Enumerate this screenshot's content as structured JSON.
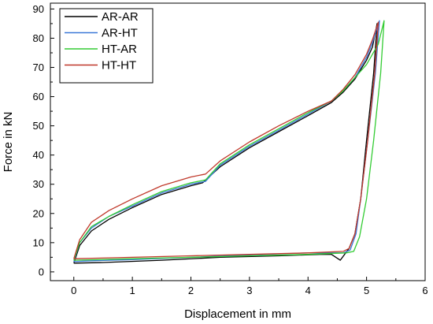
{
  "chart_data": {
    "type": "line",
    "xlabel": "Displacement in mm",
    "ylabel": "Force in kN",
    "xlim": [
      -0.4,
      6
    ],
    "ylim": [
      -3,
      92
    ],
    "xticks": [
      0,
      1,
      2,
      3,
      4,
      5,
      6
    ],
    "yticks": [
      0,
      10,
      20,
      30,
      40,
      50,
      60,
      70,
      80,
      90
    ],
    "grid": false,
    "legend_position": "top-left",
    "series": [
      {
        "name": "AR-AR",
        "color": "#000000",
        "points": [
          [
            0,
            3
          ],
          [
            0.1,
            9
          ],
          [
            0.3,
            14
          ],
          [
            0.6,
            18
          ],
          [
            1.0,
            22
          ],
          [
            1.5,
            26.5
          ],
          [
            2.0,
            29.5
          ],
          [
            2.2,
            30.5
          ],
          [
            2.5,
            36
          ],
          [
            3.0,
            42.5
          ],
          [
            3.5,
            48
          ],
          [
            4.0,
            53.5
          ],
          [
            4.4,
            58
          ],
          [
            4.6,
            61.5
          ],
          [
            4.8,
            66
          ],
          [
            5.0,
            72.5
          ],
          [
            5.1,
            77
          ],
          [
            5.18,
            85
          ],
          [
            5.12,
            68
          ],
          [
            5.0,
            45
          ],
          [
            4.9,
            25
          ],
          [
            4.8,
            13
          ],
          [
            4.7,
            8
          ],
          [
            4.55,
            4
          ],
          [
            4.4,
            6
          ],
          [
            4.2,
            6
          ],
          [
            3.5,
            5.5
          ],
          [
            2.5,
            5
          ],
          [
            1.5,
            4
          ],
          [
            0.5,
            3.2
          ],
          [
            0,
            3
          ]
        ]
      },
      {
        "name": "AR-HT",
        "color": "#3c78d8",
        "points": [
          [
            0,
            3.5
          ],
          [
            0.1,
            10
          ],
          [
            0.3,
            15
          ],
          [
            0.6,
            19
          ],
          [
            1.0,
            22.5
          ],
          [
            1.5,
            27
          ],
          [
            2.0,
            30
          ],
          [
            2.25,
            31
          ],
          [
            2.5,
            36.5
          ],
          [
            3.0,
            43
          ],
          [
            3.5,
            48.5
          ],
          [
            4.0,
            54
          ],
          [
            4.4,
            58.5
          ],
          [
            4.6,
            62
          ],
          [
            4.8,
            66.5
          ],
          [
            5.0,
            73.5
          ],
          [
            5.1,
            78.5
          ],
          [
            5.22,
            86
          ],
          [
            5.15,
            68
          ],
          [
            5.02,
            45
          ],
          [
            4.9,
            25
          ],
          [
            4.82,
            13
          ],
          [
            4.72,
            7.5
          ],
          [
            4.6,
            6.5
          ],
          [
            4.0,
            6.5
          ],
          [
            3.0,
            5.8
          ],
          [
            2.0,
            5
          ],
          [
            1.0,
            4.2
          ],
          [
            0.3,
            3.8
          ],
          [
            0,
            3.5
          ]
        ]
      },
      {
        "name": "HT-AR",
        "color": "#33cc33",
        "points": [
          [
            0,
            4
          ],
          [
            0.1,
            10
          ],
          [
            0.3,
            15.5
          ],
          [
            0.6,
            19
          ],
          [
            1.0,
            23
          ],
          [
            1.5,
            27.5
          ],
          [
            2.0,
            30.5
          ],
          [
            2.25,
            31.5
          ],
          [
            2.5,
            37
          ],
          [
            3.0,
            43.5
          ],
          [
            3.5,
            49
          ],
          [
            4.0,
            54.5
          ],
          [
            4.4,
            58.5
          ],
          [
            4.6,
            62
          ],
          [
            4.8,
            66.5
          ],
          [
            5.0,
            71
          ],
          [
            5.1,
            74.5
          ],
          [
            5.2,
            78
          ],
          [
            5.3,
            86
          ],
          [
            5.24,
            68
          ],
          [
            5.12,
            45
          ],
          [
            5.0,
            25
          ],
          [
            4.88,
            12
          ],
          [
            4.78,
            7
          ],
          [
            4.65,
            6.5
          ],
          [
            4.0,
            6
          ],
          [
            3.0,
            5.5
          ],
          [
            2.0,
            5
          ],
          [
            1.0,
            4.5
          ],
          [
            0,
            4
          ]
        ]
      },
      {
        "name": "HT-HT",
        "color": "#c0392b",
        "points": [
          [
            0,
            4.5
          ],
          [
            0.1,
            11
          ],
          [
            0.3,
            17
          ],
          [
            0.6,
            21
          ],
          [
            1.0,
            25
          ],
          [
            1.5,
            29.5
          ],
          [
            2.0,
            32.5
          ],
          [
            2.25,
            33.5
          ],
          [
            2.5,
            38
          ],
          [
            3.0,
            44.5
          ],
          [
            3.5,
            50
          ],
          [
            4.0,
            55
          ],
          [
            4.4,
            58.5
          ],
          [
            4.6,
            62.5
          ],
          [
            4.8,
            67.5
          ],
          [
            5.0,
            74.5
          ],
          [
            5.1,
            79.5
          ],
          [
            5.2,
            85.5
          ],
          [
            5.14,
            68
          ],
          [
            5.02,
            45
          ],
          [
            4.9,
            25
          ],
          [
            4.8,
            13
          ],
          [
            4.7,
            8
          ],
          [
            4.6,
            7
          ],
          [
            4.0,
            6.5
          ],
          [
            3.0,
            6
          ],
          [
            2.0,
            5.5
          ],
          [
            1.0,
            5
          ],
          [
            0,
            4.5
          ]
        ]
      }
    ]
  }
}
